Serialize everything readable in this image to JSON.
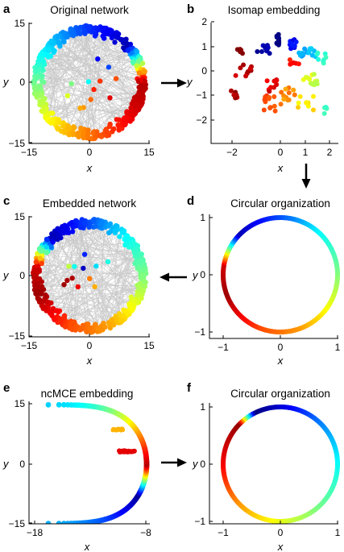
{
  "panels": {
    "a": {
      "label": "a",
      "title": "Original network",
      "xlabel": "x",
      "ylabel": "y",
      "xticks": [
        "−15",
        "0",
        "15"
      ],
      "yticks": [
        "15",
        "0",
        "−15"
      ]
    },
    "b": {
      "label": "b",
      "title": "Isomap embedding",
      "xlabel": "x",
      "ylabel": "y",
      "xticks": [
        "−2",
        "0",
        "1",
        "2"
      ],
      "yticks": [
        "2",
        "1",
        "0",
        "−1",
        "−2"
      ]
    },
    "c": {
      "label": "c",
      "title": "Embedded network",
      "xlabel": "x",
      "ylabel": "y",
      "xticks": [
        "−15",
        "0",
        "15"
      ],
      "yticks": [
        "15",
        "0",
        "−15"
      ]
    },
    "d": {
      "label": "d",
      "title": "Circular organization",
      "xlabel": "x",
      "ylabel": "y",
      "xticks": [
        "−1",
        "0",
        "1"
      ],
      "yticks": [
        "1",
        "0",
        "−1"
      ]
    },
    "e": {
      "label": "e",
      "title": "ncMCE embedding",
      "xlabel": "x",
      "ylabel": "y",
      "xticks": [
        "−18",
        "−8"
      ],
      "yticks": [
        "15",
        "0",
        "−15"
      ]
    },
    "f": {
      "label": "f",
      "title": "Circular organization",
      "xlabel": "x",
      "ylabel": "y",
      "xticks": [
        "−1",
        "0",
        "1"
      ],
      "yticks": [
        "1",
        "0",
        "−1"
      ]
    }
  },
  "flow": [
    "a→b",
    "b→d",
    "d→c",
    "e→f"
  ],
  "colors": {
    "edges": "#c8c8c8",
    "axis": "#000000",
    "colormap": "jet"
  }
}
